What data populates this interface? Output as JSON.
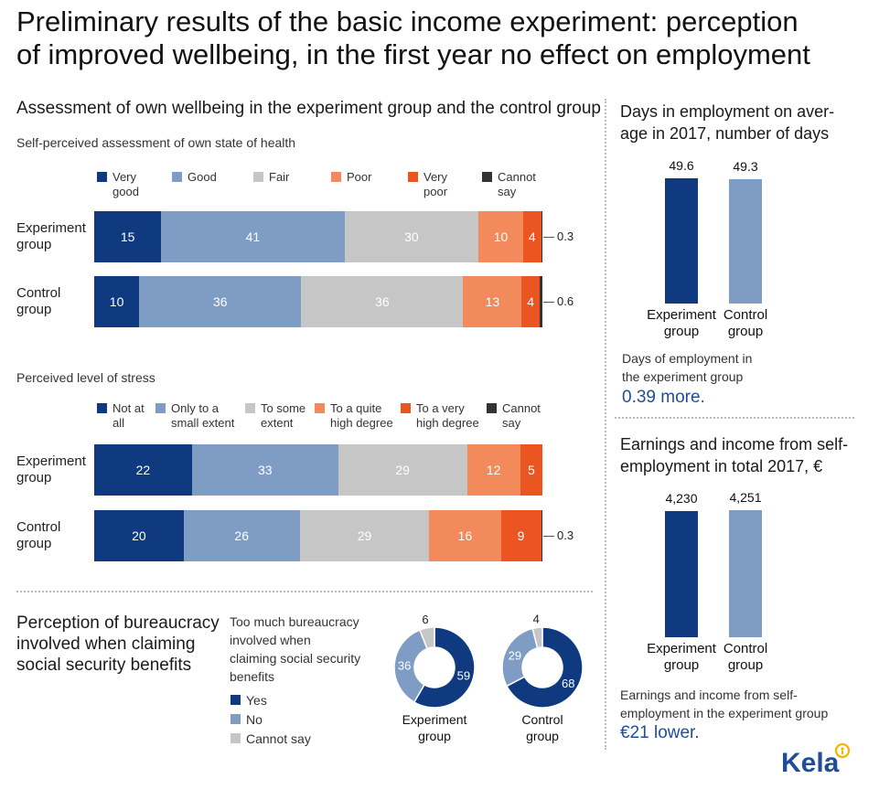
{
  "title_lines": [
    "Preliminary results of the basic income experiment: perception",
    "of improved wellbeing, in the first year no effect on employment"
  ],
  "colors": {
    "very_dark_blue": "#0f3a80",
    "mid_blue": "#7f9cc5",
    "gray": "#c6c6c6",
    "salmon": "#f28a5c",
    "orange": "#ea5522",
    "dark": "#333333",
    "accent_text": "#1f4e96"
  },
  "wellbeing": {
    "title": "Assessment of own wellbeing in the experiment group and the control group"
  },
  "chart_data": [
    {
      "type": "bar",
      "orientation": "horizontal-stacked-percent",
      "title": "Self-perceived assessment of own state of health",
      "categories": [
        [
          "Experiment",
          "group"
        ],
        [
          "Control",
          "group"
        ]
      ],
      "series": [
        {
          "name": [
            "Very",
            "good"
          ],
          "color": "#0f3a80",
          "values": [
            15,
            10
          ]
        },
        {
          "name": [
            "Good"
          ],
          "color": "#7f9cc5",
          "values": [
            41,
            36
          ]
        },
        {
          "name": [
            "Fair"
          ],
          "color": "#c6c6c6",
          "values": [
            30,
            36
          ]
        },
        {
          "name": [
            "Poor"
          ],
          "color": "#f28a5c",
          "values": [
            10,
            13
          ]
        },
        {
          "name": [
            "Very",
            "poor"
          ],
          "color": "#ea5522",
          "values": [
            4,
            4
          ]
        },
        {
          "name": [
            "Cannot",
            "say"
          ],
          "color": "#333333",
          "values": [
            0.3,
            0.6
          ]
        }
      ],
      "outside_labels": [
        "0.3",
        "0.6"
      ]
    },
    {
      "type": "bar",
      "orientation": "horizontal-stacked-percent",
      "title": "Perceived level of stress",
      "categories": [
        [
          "Experiment",
          "group"
        ],
        [
          "Control",
          "group"
        ]
      ],
      "series": [
        {
          "name": [
            "Not at",
            "all"
          ],
          "color": "#0f3a80",
          "values": [
            22,
            20
          ]
        },
        {
          "name": [
            "Only to a",
            "small extent"
          ],
          "color": "#7f9cc5",
          "values": [
            33,
            26
          ]
        },
        {
          "name": [
            "To some",
            "extent"
          ],
          "color": "#c6c6c6",
          "values": [
            29,
            29
          ]
        },
        {
          "name": [
            "To a quite",
            "high degree"
          ],
          "color": "#f28a5c",
          "values": [
            12,
            16
          ]
        },
        {
          "name": [
            "To a very",
            "high degree"
          ],
          "color": "#ea5522",
          "values": [
            5,
            9
          ]
        },
        {
          "name": [
            "Cannot",
            "say"
          ],
          "color": "#333333",
          "values": [
            0,
            0.3
          ]
        }
      ],
      "outside_labels": [
        "",
        "0.3"
      ]
    },
    {
      "type": "pie",
      "style": "donut",
      "title_lines": [
        "Perception of bureaucracy",
        "involved when claiming",
        "social security benefits"
      ],
      "question_lines": [
        "Too much bureaucracy",
        "involved when",
        "claiming social security",
        "benefits"
      ],
      "legend": [
        {
          "label": "Yes",
          "color": "#0f3a80"
        },
        {
          "label": "No",
          "color": "#7f9cc5"
        },
        {
          "label": "Cannot say",
          "color": "#c6c6c6"
        }
      ],
      "groups": [
        {
          "label": [
            "Experiment",
            "group"
          ],
          "values": [
            59,
            36,
            6
          ]
        },
        {
          "label": [
            "Control",
            "group"
          ],
          "values": [
            68,
            29,
            4
          ]
        }
      ]
    },
    {
      "type": "bar",
      "title_lines": [
        "Days in employment on aver-",
        "age in 2017, number of days"
      ],
      "categories": [
        [
          "Experiment",
          "group"
        ],
        [
          "Control",
          "group"
        ]
      ],
      "values": [
        49.6,
        49.3
      ],
      "value_labels": [
        "49.6",
        "49.3"
      ],
      "colors": [
        "#0f3a80",
        "#7f9cc5"
      ],
      "ylim": [
        0,
        55
      ]
    },
    {
      "type": "bar",
      "title_lines": [
        "Earnings and income from self-",
        "employment in total 2017, €"
      ],
      "categories": [
        [
          "Experiment",
          "group"
        ],
        [
          "Control",
          "group"
        ]
      ],
      "values": [
        4230,
        4251
      ],
      "value_labels": [
        "4,230",
        "4,251"
      ],
      "colors": [
        "#0f3a80",
        "#7f9cc5"
      ],
      "ylim": [
        0,
        4600
      ]
    }
  ],
  "notes": {
    "days": {
      "lines": [
        "Days of employment in",
        "the experiment group"
      ],
      "highlight": "0.39 more."
    },
    "earnings": {
      "lines": [
        "Earnings and income from self-",
        "employment in the experiment group"
      ],
      "highlight": "€21 lower."
    }
  },
  "logo": {
    "text": "Kela"
  }
}
